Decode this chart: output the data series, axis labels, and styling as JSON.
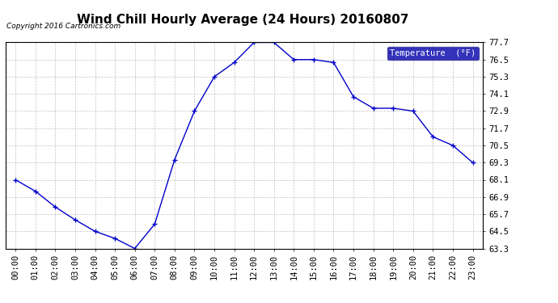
{
  "title": "Wind Chill Hourly Average (24 Hours) 20160807",
  "copyright": "Copyright 2016 Cartronics.com",
  "legend_label": "Temperature  (°F)",
  "hours": [
    "00:00",
    "01:00",
    "02:00",
    "03:00",
    "04:00",
    "05:00",
    "06:00",
    "07:00",
    "08:00",
    "09:00",
    "10:00",
    "11:00",
    "12:00",
    "13:00",
    "14:00",
    "15:00",
    "16:00",
    "17:00",
    "18:00",
    "19:00",
    "20:00",
    "21:00",
    "22:00",
    "23:00"
  ],
  "values": [
    68.1,
    67.3,
    66.2,
    65.3,
    64.5,
    64.0,
    63.3,
    65.0,
    69.5,
    72.9,
    75.3,
    76.3,
    77.7,
    77.7,
    76.5,
    76.5,
    76.3,
    73.9,
    73.1,
    73.1,
    72.9,
    71.1,
    70.5,
    69.3
  ],
  "ylim_min": 63.3,
  "ylim_max": 77.7,
  "yticks": [
    63.3,
    64.5,
    65.7,
    66.9,
    68.1,
    69.3,
    70.5,
    71.7,
    72.9,
    74.1,
    75.3,
    76.5,
    77.7
  ],
  "line_color": "#0000cc",
  "marker": "+",
  "bg_color": "#ffffff",
  "plot_bg_color": "#ffffff",
  "grid_color": "#aaaaaa",
  "title_fontsize": 11,
  "tick_fontsize": 7.5,
  "copyright_fontsize": 6.5,
  "legend_bg": "#0000aa",
  "legend_fg": "#ffffff"
}
